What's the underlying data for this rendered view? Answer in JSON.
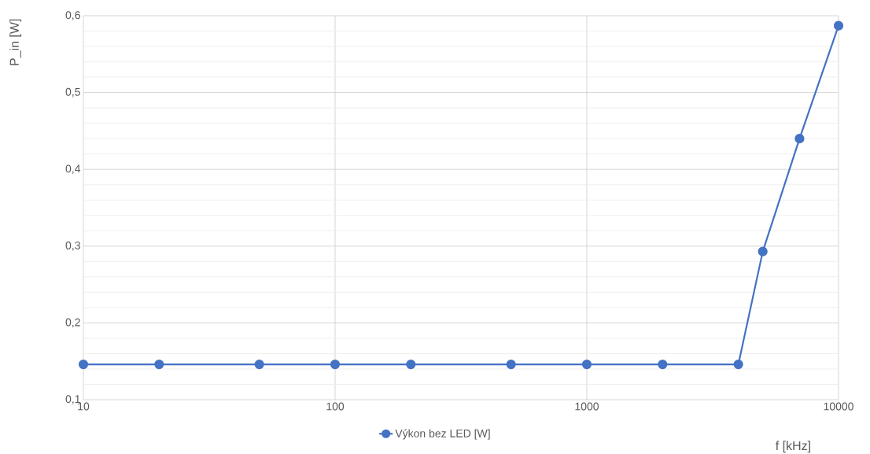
{
  "chart_data": {
    "type": "line",
    "xlabel": "f [kHz]",
    "ylabel": "P_in [W]",
    "x": [
      10,
      20,
      50,
      100,
      200,
      500,
      1000,
      2000,
      4000,
      5000,
      7000,
      10000
    ],
    "series": [
      {
        "name": "Výkon bez LED [W]",
        "color": "#4472c4",
        "values": [
          0.146,
          0.146,
          0.146,
          0.146,
          0.146,
          0.146,
          0.146,
          0.146,
          0.146,
          0.293,
          0.44,
          0.587
        ]
      }
    ],
    "xlim": [
      10,
      10000
    ],
    "ylim": [
      0.1,
      0.6
    ],
    "xticks": [
      10,
      100,
      1000,
      10000
    ],
    "yticks": [
      {
        "value": 0.1,
        "label": "0,1"
      },
      {
        "value": 0.2,
        "label": "0,2"
      },
      {
        "value": 0.3,
        "label": "0,3"
      },
      {
        "value": 0.4,
        "label": "0,4"
      },
      {
        "value": 0.5,
        "label": "0,5"
      },
      {
        "value": 0.6,
        "label": "0,6"
      }
    ],
    "log": "x",
    "grid": true,
    "legend": "bottom",
    "marker": "circle",
    "line_style": "solid"
  }
}
